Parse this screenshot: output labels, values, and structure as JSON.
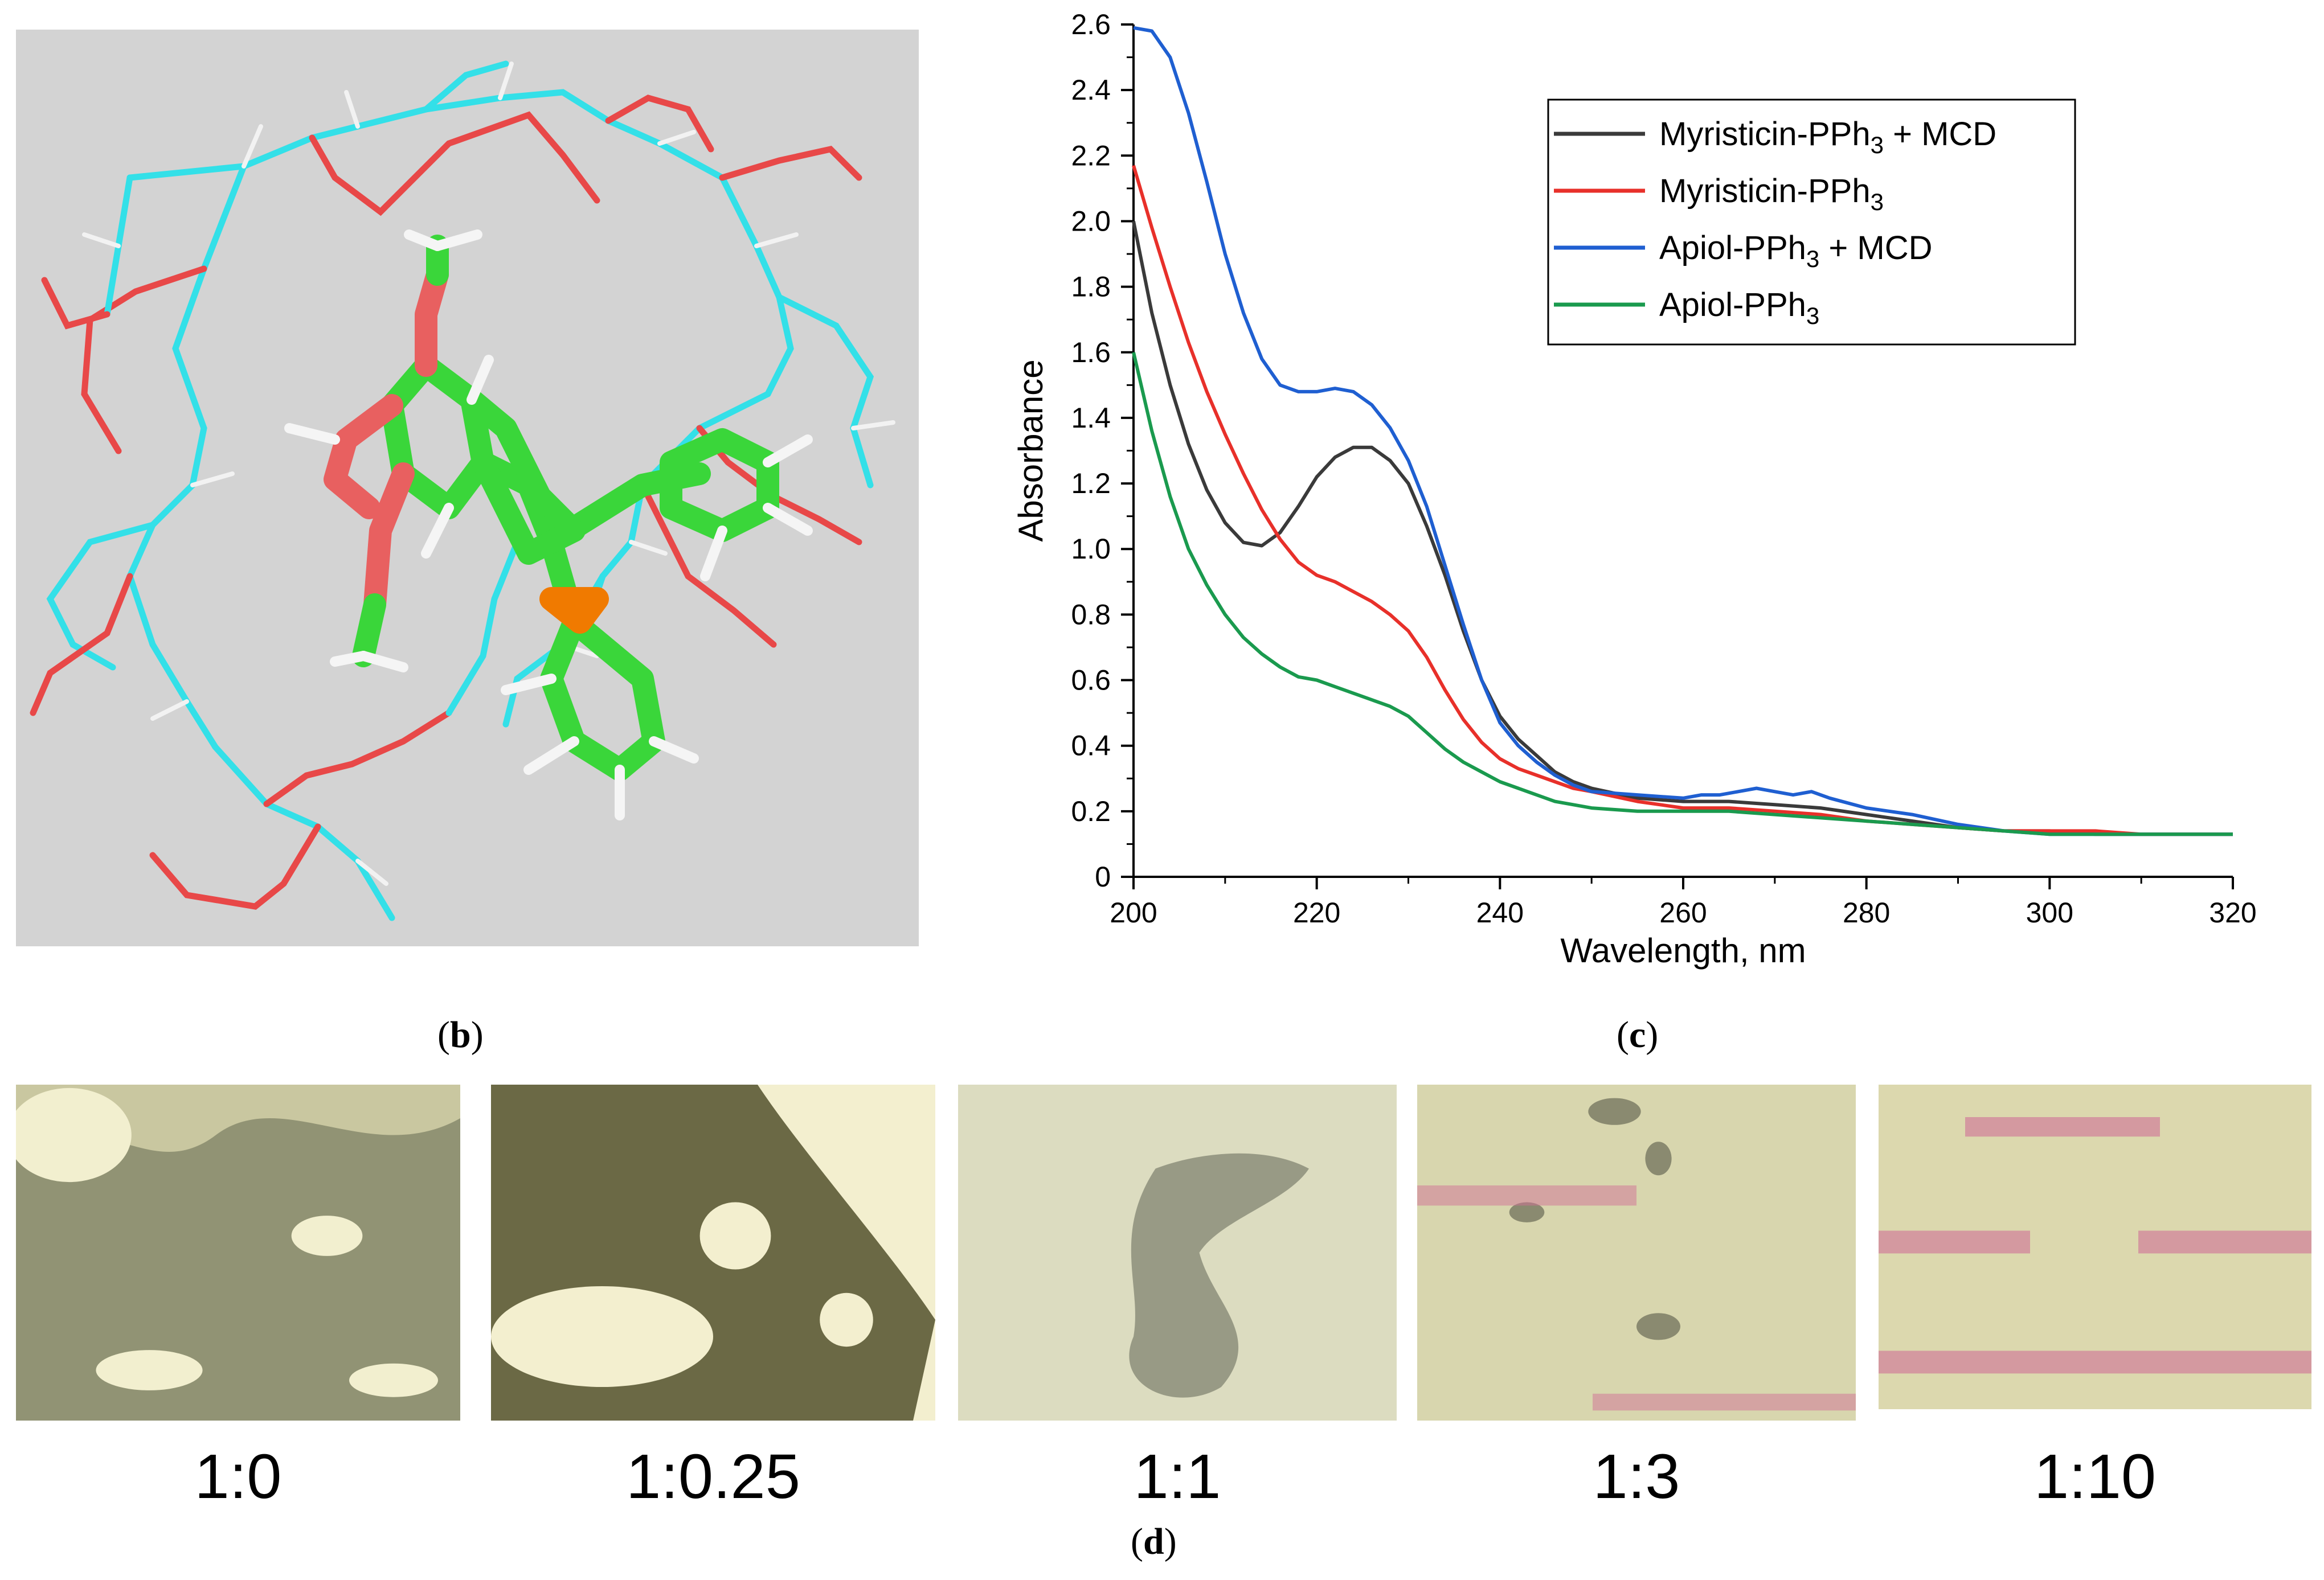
{
  "panels": {
    "b": {
      "open": "(",
      "letter": "b",
      "close": ")"
    },
    "c": {
      "open": "(",
      "letter": "c",
      "close": ")"
    },
    "d": {
      "open": "(",
      "letter": "d",
      "close": ")"
    }
  },
  "chart_data": {
    "type": "line",
    "title": "",
    "xlabel": "Wavelength, nm",
    "ylabel": "Absorbance",
    "xlim": [
      200,
      320
    ],
    "ylim": [
      0,
      2.6
    ],
    "xticks": [
      200,
      220,
      240,
      260,
      280,
      300,
      320
    ],
    "yticks": [
      0,
      0.2,
      0.4,
      0.6,
      0.8,
      1.0,
      1.2,
      1.4,
      1.6,
      1.8,
      2.0,
      2.2,
      2.4,
      2.6
    ],
    "ytick_labels": [
      "0",
      "0.2",
      "0.4",
      "0.6",
      "0.8",
      "1.0",
      "1.2",
      "1.4",
      "1.6",
      "1.8",
      "2.0",
      "2.2",
      "2.4",
      "2.6"
    ],
    "grid": false,
    "legend_position": "top-right",
    "series": [
      {
        "name": "Myristicin-PPh3 + MCD",
        "label_main": "Myristicin-PPh",
        "label_sub": "3",
        "label_tail": " + MCD",
        "color": "#3a3a3a",
        "x": [
          200,
          202,
          204,
          206,
          208,
          210,
          212,
          214,
          216,
          218,
          220,
          222,
          224,
          226,
          228,
          230,
          232,
          234,
          236,
          238,
          240,
          242,
          244,
          246,
          248,
          250,
          255,
          260,
          265,
          270,
          275,
          280,
          285,
          290,
          295,
          300,
          305,
          310,
          315,
          320
        ],
        "y": [
          2.0,
          1.72,
          1.5,
          1.32,
          1.18,
          1.08,
          1.02,
          1.01,
          1.05,
          1.13,
          1.22,
          1.28,
          1.31,
          1.31,
          1.27,
          1.2,
          1.07,
          0.92,
          0.75,
          0.6,
          0.49,
          0.42,
          0.37,
          0.32,
          0.29,
          0.27,
          0.24,
          0.23,
          0.23,
          0.22,
          0.21,
          0.19,
          0.17,
          0.15,
          0.14,
          0.14,
          0.13,
          0.13,
          0.13,
          0.13
        ]
      },
      {
        "name": "Myristicin-PPh3",
        "label_main": "Myristicin-PPh",
        "label_sub": "3",
        "label_tail": "",
        "color": "#e8302a",
        "x": [
          200,
          202,
          204,
          206,
          208,
          210,
          212,
          214,
          216,
          218,
          220,
          222,
          224,
          226,
          228,
          230,
          232,
          234,
          236,
          238,
          240,
          242,
          244,
          246,
          248,
          250,
          255,
          260,
          265,
          270,
          275,
          280,
          285,
          290,
          295,
          300,
          305,
          310,
          315,
          320
        ],
        "y": [
          2.17,
          1.98,
          1.8,
          1.63,
          1.48,
          1.35,
          1.23,
          1.12,
          1.03,
          0.96,
          0.92,
          0.9,
          0.87,
          0.84,
          0.8,
          0.75,
          0.67,
          0.57,
          0.48,
          0.41,
          0.36,
          0.33,
          0.31,
          0.29,
          0.27,
          0.26,
          0.23,
          0.21,
          0.21,
          0.2,
          0.19,
          0.17,
          0.16,
          0.15,
          0.14,
          0.14,
          0.14,
          0.13,
          0.13,
          0.13
        ]
      },
      {
        "name": "Apiol-PPh3 + MCD",
        "label_main": "Apiol-PPh",
        "label_sub": "3",
        "label_tail": " + MCD",
        "color": "#1f5fd1",
        "x": [
          200,
          202,
          204,
          206,
          208,
          210,
          212,
          214,
          216,
          218,
          220,
          222,
          224,
          226,
          228,
          230,
          232,
          234,
          236,
          238,
          240,
          242,
          244,
          246,
          248,
          250,
          255,
          260,
          262,
          264,
          266,
          268,
          270,
          272,
          274,
          276,
          280,
          285,
          290,
          295,
          300,
          305,
          310,
          315,
          320
        ],
        "y": [
          2.59,
          2.58,
          2.5,
          2.33,
          2.12,
          1.9,
          1.72,
          1.58,
          1.5,
          1.48,
          1.48,
          1.49,
          1.48,
          1.44,
          1.37,
          1.27,
          1.13,
          0.95,
          0.77,
          0.6,
          0.47,
          0.4,
          0.35,
          0.31,
          0.28,
          0.26,
          0.25,
          0.24,
          0.25,
          0.25,
          0.26,
          0.27,
          0.26,
          0.25,
          0.26,
          0.24,
          0.21,
          0.19,
          0.16,
          0.14,
          0.13,
          0.13,
          0.13,
          0.13,
          0.13
        ]
      },
      {
        "name": "Apiol-PPh3",
        "label_main": "Apiol-PPh",
        "label_sub": "3",
        "label_tail": "",
        "color": "#1a9a4e",
        "x": [
          200,
          202,
          204,
          206,
          208,
          210,
          212,
          214,
          216,
          218,
          220,
          222,
          224,
          226,
          228,
          230,
          232,
          234,
          236,
          238,
          240,
          242,
          244,
          246,
          248,
          250,
          255,
          260,
          265,
          270,
          275,
          280,
          285,
          290,
          295,
          300,
          305,
          310,
          315,
          320
        ],
        "y": [
          1.6,
          1.36,
          1.16,
          1.0,
          0.89,
          0.8,
          0.73,
          0.68,
          0.64,
          0.61,
          0.6,
          0.58,
          0.56,
          0.54,
          0.52,
          0.49,
          0.44,
          0.39,
          0.35,
          0.32,
          0.29,
          0.27,
          0.25,
          0.23,
          0.22,
          0.21,
          0.2,
          0.2,
          0.2,
          0.19,
          0.18,
          0.17,
          0.16,
          0.15,
          0.14,
          0.13,
          0.13,
          0.13,
          0.13,
          0.13
        ]
      }
    ]
  },
  "micrographs": [
    {
      "label": "1:0",
      "bg": "#c9c7a0",
      "dark": "#7e8266"
    },
    {
      "label": "1:0.25",
      "bg": "#f3efcf",
      "dark": "#5c5a35"
    },
    {
      "label": "1:1",
      "bg": "#dcdcc0",
      "dark": "#8c8e7a"
    },
    {
      "label": "1:3",
      "bg": "#d8d6ae",
      "dark": "#8a8a70"
    },
    {
      "label": "1:10",
      "bg": "#dcd8ae",
      "dark": "#cf6f96"
    }
  ]
}
